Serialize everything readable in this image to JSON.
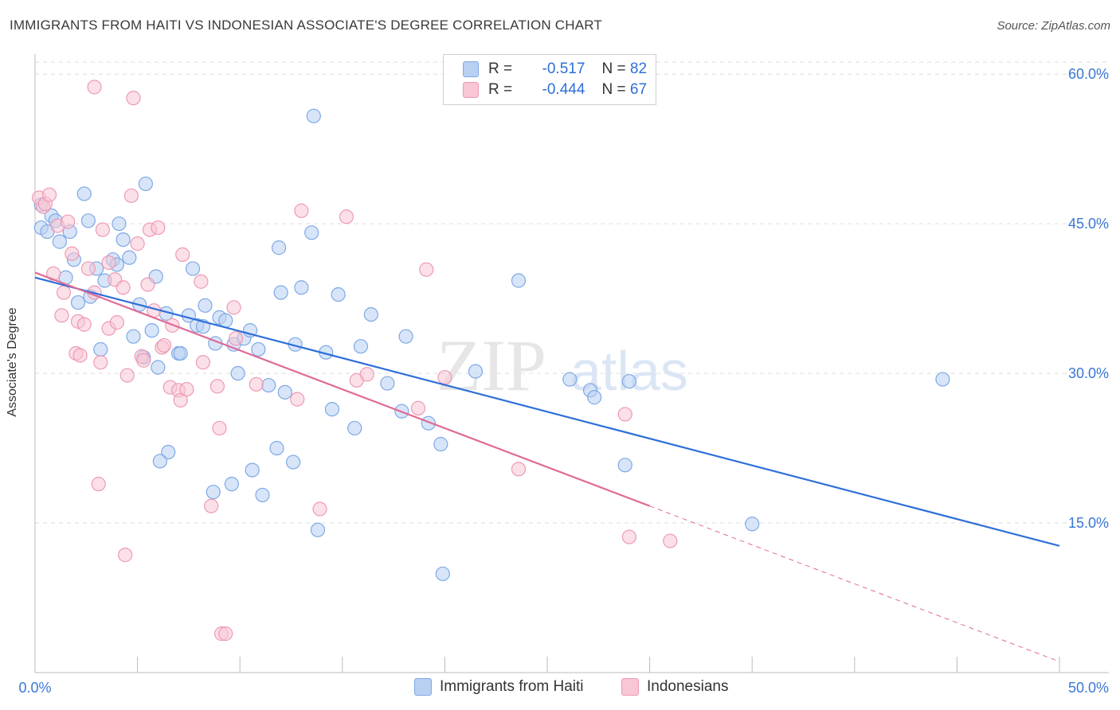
{
  "title": "IMMIGRANTS FROM HAITI VS INDONESIAN ASSOCIATE'S DEGREE CORRELATION CHART",
  "source": "Source: ZipAtlas.com",
  "watermark": {
    "zip": "ZIP",
    "atlas": "atlas"
  },
  "legend": [
    {
      "r_label": "R =",
      "r_value": "-0.517",
      "n_label": "N =",
      "n_value": "82"
    },
    {
      "r_label": "R =",
      "r_value": "-0.444",
      "n_label": "N =",
      "n_value": "67"
    }
  ],
  "colors": {
    "blue_fill": "#b8d0f2",
    "blue_stroke": "#7ea9e6",
    "blue_line": "#2e6fd8",
    "pink_fill": "#f8c6d5",
    "pink_stroke": "#ee9ab4",
    "pink_line": "#e06b96",
    "grid": "#dddddd",
    "tick_label": "#3a78d6"
  },
  "chart_data": {
    "type": "scatter",
    "xlabel": "",
    "ylabel": "Associate's Degree",
    "xlim": [
      0,
      50
    ],
    "ylim": [
      0,
      62
    ],
    "x_ticks": [
      "0.0%",
      "50.0%"
    ],
    "y_ticks": [
      {
        "value": 15,
        "label": "15.0%"
      },
      {
        "value": 30,
        "label": "30.0%"
      },
      {
        "value": 45,
        "label": "45.0%"
      },
      {
        "value": 60,
        "label": "60.0%"
      }
    ],
    "grid": true,
    "legend_position": "top-center",
    "series": [
      {
        "name": "Immigrants from Haiti",
        "color": "#7ea9e6",
        "points": [
          [
            0.3,
            46.9
          ],
          [
            0.3,
            44.6
          ],
          [
            0.6,
            44.2
          ],
          [
            0.8,
            45.8
          ],
          [
            1.0,
            45.3
          ],
          [
            1.2,
            43.2
          ],
          [
            1.5,
            39.6
          ],
          [
            1.7,
            44.2
          ],
          [
            1.9,
            41.4
          ],
          [
            2.1,
            37.1
          ],
          [
            2.4,
            48.0
          ],
          [
            2.6,
            45.3
          ],
          [
            2.7,
            37.7
          ],
          [
            3.0,
            40.5
          ],
          [
            3.2,
            32.4
          ],
          [
            3.4,
            39.3
          ],
          [
            3.8,
            41.4
          ],
          [
            4.0,
            40.9
          ],
          [
            4.1,
            45.0
          ],
          [
            4.3,
            43.4
          ],
          [
            4.6,
            41.6
          ],
          [
            4.8,
            33.7
          ],
          [
            5.1,
            36.9
          ],
          [
            5.3,
            31.6
          ],
          [
            5.4,
            49.0
          ],
          [
            5.7,
            34.3
          ],
          [
            5.9,
            39.7
          ],
          [
            6.0,
            30.6
          ],
          [
            6.4,
            36.0
          ],
          [
            6.5,
            22.1
          ],
          [
            6.1,
            21.2
          ],
          [
            7.0,
            32.0
          ],
          [
            7.1,
            32.0
          ],
          [
            7.5,
            35.8
          ],
          [
            7.7,
            40.5
          ],
          [
            7.9,
            34.8
          ],
          [
            8.2,
            34.7
          ],
          [
            8.3,
            36.8
          ],
          [
            8.7,
            18.1
          ],
          [
            8.8,
            33.0
          ],
          [
            9.0,
            35.6
          ],
          [
            9.3,
            35.3
          ],
          [
            9.6,
            18.9
          ],
          [
            9.7,
            32.9
          ],
          [
            9.9,
            30.0
          ],
          [
            10.2,
            33.5
          ],
          [
            10.5,
            34.3
          ],
          [
            10.6,
            20.3
          ],
          [
            10.9,
            32.4
          ],
          [
            11.1,
            17.8
          ],
          [
            11.4,
            28.8
          ],
          [
            11.8,
            22.5
          ],
          [
            11.9,
            42.6
          ],
          [
            12.0,
            38.1
          ],
          [
            12.2,
            28.1
          ],
          [
            12.6,
            21.1
          ],
          [
            12.7,
            32.9
          ],
          [
            13.0,
            38.6
          ],
          [
            13.5,
            44.1
          ],
          [
            13.6,
            55.8
          ],
          [
            13.8,
            14.3
          ],
          [
            14.2,
            32.1
          ],
          [
            14.5,
            26.4
          ],
          [
            14.8,
            37.9
          ],
          [
            15.6,
            24.5
          ],
          [
            15.9,
            32.7
          ],
          [
            16.4,
            35.9
          ],
          [
            17.2,
            29.0
          ],
          [
            17.9,
            26.2
          ],
          [
            18.1,
            33.7
          ],
          [
            19.2,
            25.0
          ],
          [
            19.8,
            22.9
          ],
          [
            19.9,
            9.9
          ],
          [
            21.5,
            30.2
          ],
          [
            23.6,
            39.3
          ],
          [
            26.1,
            29.4
          ],
          [
            27.1,
            28.3
          ],
          [
            27.3,
            27.6
          ],
          [
            29.0,
            29.2
          ],
          [
            28.8,
            20.8
          ],
          [
            35.0,
            14.9
          ],
          [
            44.3,
            29.4
          ]
        ]
      },
      {
        "name": "Indonesians",
        "color": "#ee9ab4",
        "points": [
          [
            0.2,
            47.6
          ],
          [
            0.4,
            46.7
          ],
          [
            0.5,
            47.0
          ],
          [
            0.7,
            47.9
          ],
          [
            1.1,
            44.8
          ],
          [
            0.9,
            40.0
          ],
          [
            1.3,
            35.8
          ],
          [
            1.4,
            38.1
          ],
          [
            1.6,
            45.2
          ],
          [
            1.8,
            42.0
          ],
          [
            2.0,
            32.0
          ],
          [
            2.1,
            35.2
          ],
          [
            2.2,
            31.8
          ],
          [
            2.4,
            34.9
          ],
          [
            2.6,
            40.5
          ],
          [
            2.9,
            58.7
          ],
          [
            2.9,
            38.1
          ],
          [
            3.1,
            18.9
          ],
          [
            3.2,
            31.1
          ],
          [
            3.3,
            44.4
          ],
          [
            3.6,
            41.1
          ],
          [
            3.6,
            34.5
          ],
          [
            3.9,
            39.4
          ],
          [
            4.0,
            35.1
          ],
          [
            4.3,
            38.6
          ],
          [
            4.4,
            11.8
          ],
          [
            4.5,
            29.8
          ],
          [
            4.7,
            47.8
          ],
          [
            4.8,
            57.6
          ],
          [
            5.0,
            43.0
          ],
          [
            5.2,
            31.7
          ],
          [
            5.3,
            31.3
          ],
          [
            5.5,
            38.9
          ],
          [
            5.6,
            44.4
          ],
          [
            5.8,
            36.3
          ],
          [
            6.0,
            44.6
          ],
          [
            6.2,
            32.6
          ],
          [
            6.3,
            32.8
          ],
          [
            6.6,
            28.6
          ],
          [
            6.7,
            34.8
          ],
          [
            7.0,
            28.3
          ],
          [
            7.1,
            27.3
          ],
          [
            7.2,
            41.9
          ],
          [
            7.4,
            28.4
          ],
          [
            8.1,
            39.2
          ],
          [
            8.2,
            31.1
          ],
          [
            8.6,
            16.7
          ],
          [
            8.9,
            28.7
          ],
          [
            9.0,
            24.5
          ],
          [
            9.1,
            3.9
          ],
          [
            9.3,
            3.9
          ],
          [
            9.7,
            36.6
          ],
          [
            9.8,
            33.5
          ],
          [
            10.8,
            28.9
          ],
          [
            12.8,
            27.4
          ],
          [
            13.0,
            46.3
          ],
          [
            13.9,
            16.4
          ],
          [
            15.2,
            45.7
          ],
          [
            15.7,
            29.3
          ],
          [
            16.2,
            29.9
          ],
          [
            18.7,
            26.5
          ],
          [
            19.1,
            40.4
          ],
          [
            20.0,
            29.6
          ],
          [
            23.6,
            20.4
          ],
          [
            28.8,
            25.9
          ],
          [
            29.0,
            13.6
          ],
          [
            31.0,
            13.2
          ]
        ]
      }
    ],
    "trend_lines": [
      {
        "series": "Immigrants from Haiti",
        "from": [
          0,
          39.6
        ],
        "to": [
          50,
          12.7
        ]
      },
      {
        "series": "Indonesians",
        "from": [
          0,
          40.1
        ],
        "to": [
          30,
          16.7
        ],
        "dashed_to": [
          50,
          1.1
        ]
      }
    ]
  }
}
